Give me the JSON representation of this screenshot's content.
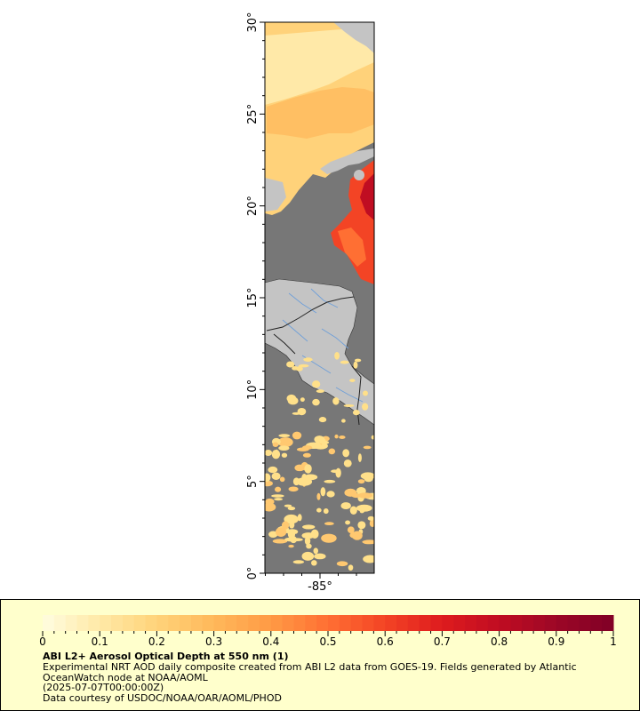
{
  "map": {
    "lat_ticks": [
      {
        "value": 0,
        "label": "0°"
      },
      {
        "value": 5,
        "label": "5°"
      },
      {
        "value": 10,
        "label": "10°"
      },
      {
        "value": 15,
        "label": "15°"
      },
      {
        "value": 20,
        "label": "20°"
      },
      {
        "value": 25,
        "label": "25°"
      },
      {
        "value": 30,
        "label": "30°"
      }
    ],
    "lon_ticks": [
      {
        "value": -85,
        "label": "-85°"
      }
    ],
    "colors": {
      "ocean_nodata": "#777777",
      "land": "#c4c4c4",
      "rivers": "#6f9fd8",
      "borders": "#333333"
    }
  },
  "legend": {
    "title": "ABI L2+ Aerosol Optical Depth at 550 nm (1)",
    "description": "Experimental NRT AOD daily composite created from ABI L2 data from GOES-19. Fields generated by Atlantic OceanWatch node at NOAA/AOML",
    "time": "(2025-07-07T00:00:00Z)",
    "credit": "Data courtesy of USDOC/NOAA/OAR/AOML/PHOD",
    "tick_labels": [
      "0",
      "0.1",
      "0.2",
      "0.3",
      "0.4",
      "0.5",
      "0.6",
      "0.7",
      "0.8",
      "0.9",
      "1"
    ],
    "range": [
      0,
      1
    ],
    "colors": [
      "#fffde0",
      "#ffe9a6",
      "#ffd37a",
      "#ffb85a",
      "#ff9a45",
      "#ff6f33",
      "#f34425",
      "#de1b1e",
      "#c00d22",
      "#9c0726",
      "#800026"
    ]
  }
}
